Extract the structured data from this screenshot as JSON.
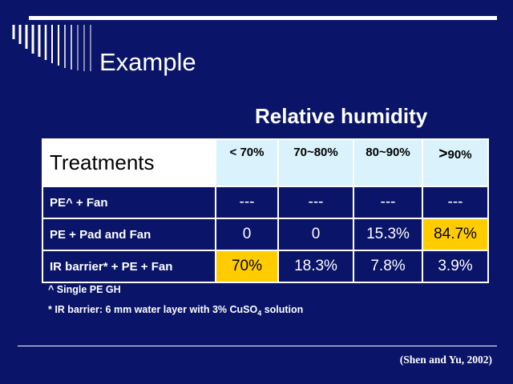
{
  "slide": {
    "title": "Example",
    "table_caption": "Relative humidity",
    "citation": "(Shen and Yu, 2002)"
  },
  "table": {
    "header": {
      "treatments": "Treatments",
      "col1": "< 70%",
      "col2": "70~80%",
      "col3": "80~90%",
      "col4_symbol": ">",
      "col4_value": "90%"
    },
    "rows": [
      {
        "label": "PE^ + Fan",
        "values": [
          "---",
          "---",
          "---",
          "---"
        ]
      },
      {
        "label": "PE + Pad and Fan",
        "values": [
          "0",
          "0",
          "15.3%",
          "84.7%"
        ]
      },
      {
        "label": "IR barrier* + PE + Fan",
        "values": [
          "70%",
          "18.3%",
          "7.8%",
          "3.9%"
        ]
      }
    ],
    "highlight_color": "#ffcc00"
  },
  "notes": {
    "note1": "^ Single PE GH",
    "note2_prefix": "* IR barrier: 6 mm water layer with 3% CuSO",
    "note2_sub": "4",
    "note2_suffix": " solution"
  },
  "colors": {
    "background": "#0a1468",
    "header_cell": "#d9f2fb",
    "text": "#ffffff"
  }
}
